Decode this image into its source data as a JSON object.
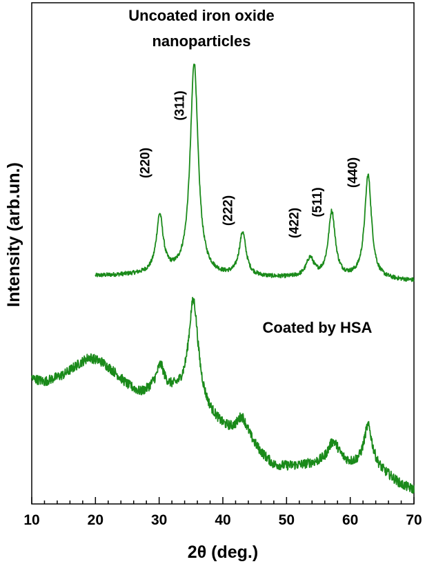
{
  "chart_data": {
    "type": "line",
    "xlabel": "2θ (deg.)",
    "ylabel": "Intensity (arb.un.)",
    "xlim": [
      10,
      70
    ],
    "x_ticks": [
      10,
      20,
      30,
      40,
      50,
      60,
      70
    ],
    "x_minor_step": 2,
    "y_ticks_shown": false,
    "grid": false,
    "line_color": "#1a8a1a",
    "annotations": {
      "uncoated_line1": "Uncoated iron oxide",
      "uncoated_line2": "nanoparticles",
      "coated": "Coated by HSA"
    },
    "peak_labels": [
      {
        "text": "(220)",
        "x": 30.1
      },
      {
        "text": "(311)",
        "x": 35.5
      },
      {
        "text": "(222)",
        "x": 43.1
      },
      {
        "text": "(422)",
        "x": 53.5
      },
      {
        "text": "(511)",
        "x": 57.1
      },
      {
        "text": "(440)",
        "x": 62.7
      }
    ],
    "series": [
      {
        "x_range": [
          20,
          70
        ],
        "baseline": [
          [
            20,
            12
          ],
          [
            30,
            14
          ],
          [
            40,
            10
          ],
          [
            50,
            9
          ],
          [
            60,
            8
          ],
          [
            70,
            5
          ]
        ],
        "peaks": [
          {
            "x": 30.1,
            "height": 83,
            "width": 0.65
          },
          {
            "x": 35.5,
            "height": 308,
            "width": 0.75
          },
          {
            "x": 43.1,
            "height": 63,
            "width": 0.65
          },
          {
            "x": 53.7,
            "height": 27,
            "width": 0.75
          },
          {
            "x": 57.1,
            "height": 95,
            "width": 0.65
          },
          {
            "x": 62.8,
            "height": 150,
            "width": 0.65
          }
        ],
        "noise": 3
      },
      {
        "x_range": [
          10,
          70
        ],
        "baseline": [
          [
            10,
            170
          ],
          [
            12,
            165
          ],
          [
            15,
            175
          ],
          [
            17,
            188
          ],
          [
            19,
            200
          ],
          [
            21,
            193
          ],
          [
            23,
            178
          ],
          [
            25,
            160
          ],
          [
            27,
            148
          ],
          [
            28,
            150
          ],
          [
            29,
            155
          ],
          [
            31,
            152
          ],
          [
            33,
            148
          ],
          [
            35,
            146
          ],
          [
            38,
            115
          ],
          [
            40,
            98
          ],
          [
            42,
            88
          ],
          [
            44,
            80
          ],
          [
            46,
            60
          ],
          [
            48,
            43
          ],
          [
            50,
            42
          ],
          [
            52,
            43
          ],
          [
            54,
            45
          ],
          [
            56,
            47
          ],
          [
            58,
            50
          ],
          [
            60,
            43
          ],
          [
            62,
            42
          ],
          [
            64,
            38
          ],
          [
            66,
            28
          ],
          [
            68,
            15
          ],
          [
            70,
            8
          ]
        ],
        "peaks": [
          {
            "x": 30.2,
            "height": 33,
            "width": 0.7
          },
          {
            "x": 35.4,
            "height": 140,
            "width": 0.9
          },
          {
            "x": 43.0,
            "height": 28,
            "width": 1.0
          },
          {
            "x": 57.3,
            "height": 28,
            "width": 1.0
          },
          {
            "x": 62.8,
            "height": 60,
            "width": 0.8
          }
        ],
        "noise": 7
      }
    ]
  }
}
